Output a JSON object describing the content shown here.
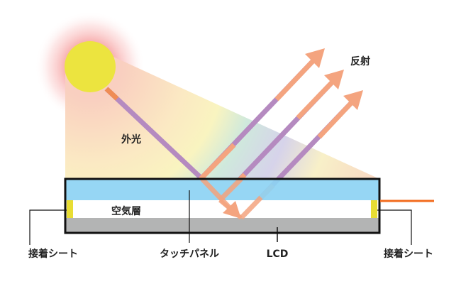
{
  "labels": {
    "external_light": "外光",
    "reflection": "反射",
    "air_layer": "空気層",
    "adhesive_left": "接着シート",
    "touch_panel": "タッチパネル",
    "lcd": "LCD",
    "adhesive_right": "接着シート"
  },
  "colors": {
    "sun": "#ece43f",
    "touch_panel": "#8dd3f3",
    "air_layer": "#ffffff",
    "lcd": "#b3b4b4",
    "adhesive": "#e8dd33",
    "ray": "#f4a47f",
    "ray_spectrum": "#b58ac0",
    "cable": "#f26b1d",
    "frame": "#111111"
  }
}
